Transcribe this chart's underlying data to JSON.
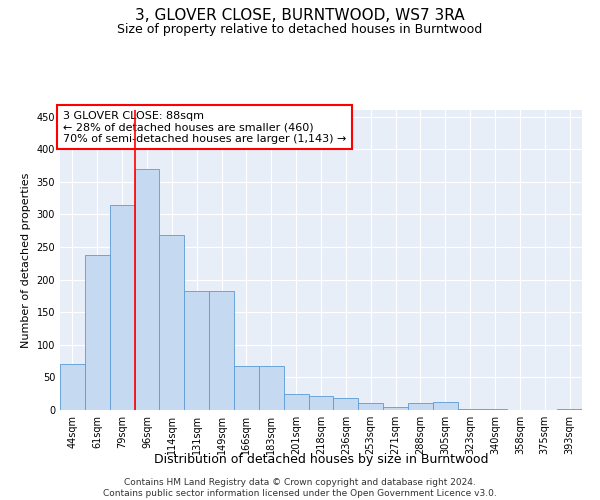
{
  "title": "3, GLOVER CLOSE, BURNTWOOD, WS7 3RA",
  "subtitle": "Size of property relative to detached houses in Burntwood",
  "xlabel": "Distribution of detached houses by size in Burntwood",
  "ylabel": "Number of detached properties",
  "categories": [
    "44sqm",
    "61sqm",
    "79sqm",
    "96sqm",
    "114sqm",
    "131sqm",
    "149sqm",
    "166sqm",
    "183sqm",
    "201sqm",
    "218sqm",
    "236sqm",
    "253sqm",
    "271sqm",
    "288sqm",
    "305sqm",
    "323sqm",
    "340sqm",
    "358sqm",
    "375sqm",
    "393sqm"
  ],
  "values": [
    70,
    237,
    315,
    370,
    268,
    182,
    182,
    67,
    68,
    24,
    22,
    18,
    10,
    5,
    10,
    12,
    1,
    1,
    0,
    0,
    2
  ],
  "bar_color": "#c5d9f0",
  "bar_edge_color": "#5b9bd5",
  "red_line_x": 2.5,
  "annotation_line1": "3 GLOVER CLOSE: 88sqm",
  "annotation_line2": "← 28% of detached houses are smaller (460)",
  "annotation_line3": "70% of semi-detached houses are larger (1,143) →",
  "ylim": [
    0,
    460
  ],
  "yticks": [
    0,
    50,
    100,
    150,
    200,
    250,
    300,
    350,
    400,
    450
  ],
  "plot_background": "#e8eef8",
  "footer_text": "Contains HM Land Registry data © Crown copyright and database right 2024.\nContains public sector information licensed under the Open Government Licence v3.0.",
  "title_fontsize": 11,
  "subtitle_fontsize": 9,
  "xlabel_fontsize": 9,
  "ylabel_fontsize": 8,
  "tick_fontsize": 7,
  "annotation_fontsize": 8,
  "footer_fontsize": 6.5
}
